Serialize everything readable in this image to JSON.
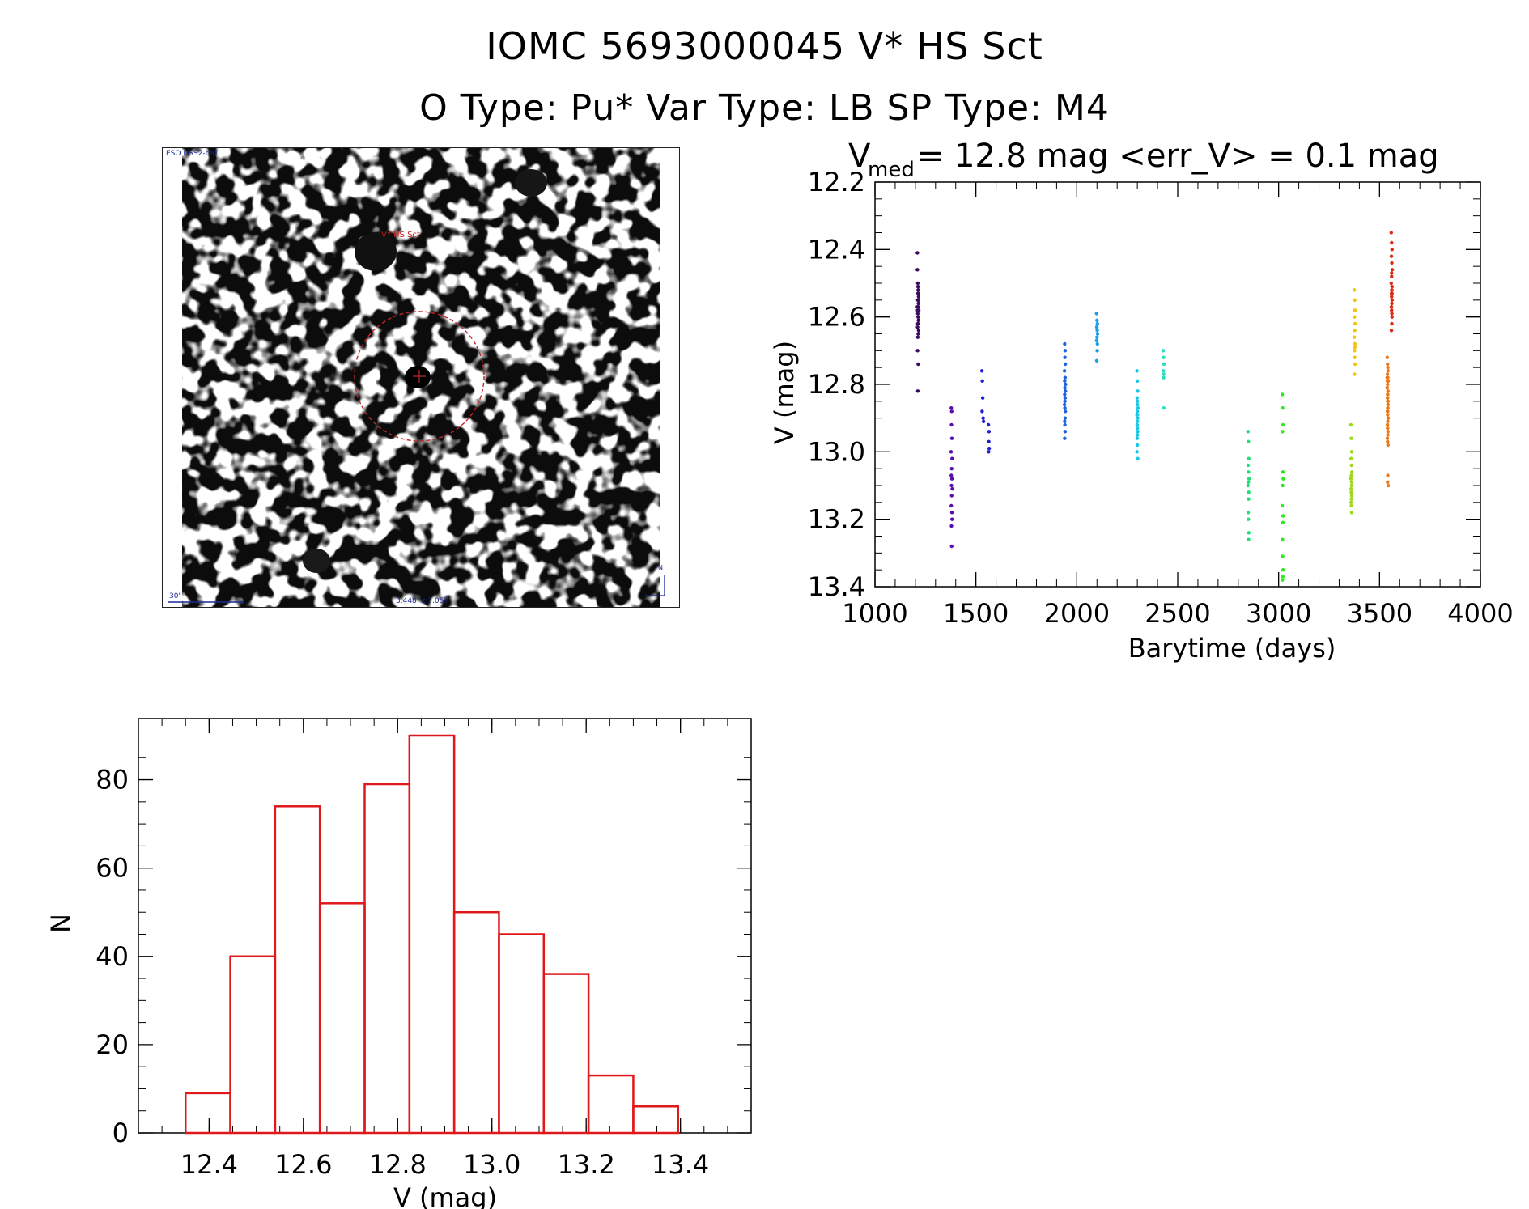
{
  "header": {
    "title_line1": "IOMC 5693000045   V* HS Sct",
    "title_line2": "O Type: Pu*  Var Type: LB  SP Type: M4"
  },
  "finder_chart": {
    "survey_label": "ESO DSS2-red",
    "target_label": "V* HS Sct",
    "scale_label": "30\"",
    "size_label": "3.448' x 3.057'",
    "north_label": "N"
  },
  "colors": {
    "histogram": "#e0181b",
    "axis": "#000000"
  },
  "chart_data": [
    {
      "type": "scatter",
      "title_prefix": "V",
      "title_subscript": "med",
      "title_rest": " = 12.8 mag <err_V> = 0.1 mag",
      "xlabel": "Barytime (days)",
      "ylabel": "V (mag)",
      "xlim": [
        1000,
        4000
      ],
      "ylim": [
        13.4,
        12.2
      ],
      "y_inverted": true,
      "xticks": [
        1000,
        1500,
        2000,
        2500,
        3000,
        3500,
        4000
      ],
      "xtick_labels": [
        "1000",
        "1500",
        "2000",
        "2500",
        "3000",
        "3500",
        "4000"
      ],
      "yticks": [
        12.2,
        12.4,
        12.6,
        12.8,
        13.0,
        13.2,
        13.4
      ],
      "ytick_labels": [
        "12.2",
        "12.4",
        "12.6",
        "12.8",
        "13.0",
        "13.2",
        "13.4"
      ],
      "series": [
        {
          "name": "s1200",
          "color": "#3b0a5c",
          "x": [
            1210,
            1210,
            1212,
            1214,
            1214,
            1216,
            1212,
            1215,
            1213,
            1211,
            1217,
            1212,
            1214,
            1215,
            1213,
            1211,
            1216,
            1214,
            1212,
            1210,
            1213,
            1215,
            1214,
            1212,
            1216,
            1213,
            1211,
            1214,
            1212
          ],
          "y": [
            12.41,
            12.46,
            12.5,
            12.52,
            12.53,
            12.54,
            12.55,
            12.56,
            12.57,
            12.58,
            12.58,
            12.59,
            12.6,
            12.61,
            12.62,
            12.63,
            12.64,
            12.65,
            12.66,
            12.57,
            12.51,
            12.55,
            12.6,
            12.62,
            12.56,
            12.53,
            12.7,
            12.74,
            12.82
          ]
        },
        {
          "name": "s1380",
          "color": "#5a0ea8",
          "x": [
            1378,
            1380,
            1379,
            1381,
            1377,
            1382,
            1380,
            1378,
            1381,
            1379,
            1383,
            1380,
            1378,
            1381,
            1382,
            1379,
            1380
          ],
          "y": [
            12.87,
            12.88,
            12.92,
            12.96,
            13.0,
            13.02,
            13.05,
            13.07,
            13.08,
            13.1,
            13.11,
            13.13,
            13.16,
            13.18,
            13.2,
            13.22,
            13.28
          ]
        },
        {
          "name": "s1540",
          "color": "#2020d0",
          "x": [
            1530,
            1532,
            1534,
            1531,
            1536,
            1538,
            1562,
            1565,
            1564,
            1566,
            1563
          ],
          "y": [
            12.76,
            12.79,
            12.84,
            12.88,
            12.9,
            12.91,
            12.92,
            12.94,
            12.97,
            12.99,
            13.0
          ]
        },
        {
          "name": "s1940",
          "color": "#1e64e0",
          "x": [
            1940,
            1942,
            1941,
            1943,
            1939,
            1942,
            1940,
            1944,
            1941,
            1943,
            1940,
            1942,
            1941,
            1939,
            1943,
            1942,
            1940,
            1941,
            1942,
            1940,
            1943,
            1941
          ],
          "y": [
            12.68,
            12.7,
            12.72,
            12.74,
            12.76,
            12.78,
            12.79,
            12.8,
            12.81,
            12.82,
            12.83,
            12.84,
            12.85,
            12.86,
            12.88,
            12.9,
            12.91,
            12.92,
            12.94,
            12.96,
            12.82,
            12.87
          ]
        },
        {
          "name": "s2100",
          "color": "#14a0ea",
          "x": [
            2098,
            2100,
            2102,
            2099,
            2101,
            2103,
            2100,
            2098,
            2102,
            2101,
            2099
          ],
          "y": [
            12.59,
            12.61,
            12.62,
            12.63,
            12.64,
            12.65,
            12.66,
            12.67,
            12.68,
            12.7,
            12.73
          ]
        },
        {
          "name": "s2300",
          "color": "#18c8e4",
          "x": [
            2298,
            2300,
            2302,
            2299,
            2301,
            2303,
            2300,
            2298,
            2302,
            2301,
            2299,
            2300,
            2302,
            2301,
            2299,
            2300,
            2298,
            2302,
            2300,
            2301
          ],
          "y": [
            12.76,
            12.79,
            12.82,
            12.84,
            12.86,
            12.87,
            12.88,
            12.89,
            12.9,
            12.91,
            12.92,
            12.93,
            12.94,
            12.95,
            12.96,
            12.98,
            13.0,
            13.02,
            12.85,
            12.89
          ]
        },
        {
          "name": "s2430",
          "color": "#26e0c2",
          "x": [
            2428,
            2430,
            2432,
            2429,
            2431,
            2430,
            2431
          ],
          "y": [
            12.7,
            12.72,
            12.74,
            12.76,
            12.77,
            12.78,
            12.87
          ]
        },
        {
          "name": "s2850",
          "color": "#20e07a",
          "x": [
            2848,
            2850,
            2852,
            2849,
            2851,
            2853,
            2850,
            2848,
            2852,
            2851,
            2849,
            2850,
            2852,
            2851
          ],
          "y": [
            12.94,
            12.97,
            13.02,
            13.04,
            13.06,
            13.08,
            13.09,
            13.1,
            13.12,
            13.14,
            13.18,
            13.2,
            13.24,
            13.26
          ]
        },
        {
          "name": "s3020",
          "color": "#30e820",
          "x": [
            3018,
            3020,
            3022,
            3019,
            3021,
            3023,
            3020,
            3018,
            3022,
            3021,
            3019,
            3020,
            3022,
            3021,
            3019
          ],
          "y": [
            12.83,
            12.87,
            12.92,
            12.94,
            13.06,
            13.08,
            13.1,
            13.16,
            13.19,
            13.21,
            13.26,
            13.31,
            13.35,
            13.37,
            13.38
          ]
        },
        {
          "name": "s3360",
          "color": "#a0d81a",
          "x": [
            3358,
            3360,
            3362,
            3359,
            3361,
            3363,
            3360,
            3358,
            3362,
            3361,
            3359,
            3360,
            3362,
            3361,
            3359,
            3360,
            3362
          ],
          "y": [
            12.92,
            12.96,
            13.0,
            13.02,
            13.04,
            13.06,
            13.07,
            13.08,
            13.09,
            13.1,
            13.11,
            13.12,
            13.13,
            13.14,
            13.15,
            13.16,
            13.18
          ]
        },
        {
          "name": "s3380",
          "color": "#f0c410",
          "x": [
            3375,
            3377,
            3378,
            3376,
            3379,
            3377,
            3375,
            3378,
            3376,
            3377,
            3379,
            3376,
            3378
          ],
          "y": [
            12.52,
            12.55,
            12.58,
            12.6,
            12.62,
            12.64,
            12.66,
            12.68,
            12.7,
            12.72,
            12.74,
            12.77,
            12.69
          ]
        },
        {
          "name": "s3540",
          "color": "#f07814",
          "x": [
            3538,
            3540,
            3542,
            3539,
            3541,
            3543,
            3540,
            3538,
            3542,
            3541,
            3539,
            3540,
            3542,
            3541,
            3539,
            3540,
            3542,
            3541,
            3539,
            3540,
            3542,
            3541,
            3539,
            3540,
            3542,
            3541,
            3539,
            3540,
            3542,
            3541,
            3543,
            3538,
            3540,
            3542,
            3541,
            3539,
            3538,
            3541,
            3540,
            3543
          ],
          "y": [
            12.72,
            12.74,
            12.76,
            12.77,
            12.78,
            12.79,
            12.8,
            12.81,
            12.82,
            12.83,
            12.84,
            12.85,
            12.86,
            12.87,
            12.88,
            12.89,
            12.9,
            12.91,
            12.92,
            12.93,
            12.94,
            12.95,
            12.96,
            12.97,
            12.98,
            12.75,
            12.79,
            12.83,
            12.85,
            12.87,
            12.9,
            12.81,
            12.84,
            12.86,
            12.88,
            12.92,
            12.78,
            13.07,
            13.09,
            13.1
          ]
        },
        {
          "name": "s3560",
          "color": "#e02a12",
          "x": [
            3558,
            3560,
            3562,
            3559,
            3561,
            3563,
            3560,
            3558,
            3562,
            3561,
            3559,
            3560,
            3562,
            3561,
            3559,
            3560,
            3562,
            3561,
            3559,
            3560,
            3562,
            3561
          ],
          "y": [
            12.35,
            12.38,
            12.4,
            12.42,
            12.44,
            12.46,
            12.48,
            12.5,
            12.51,
            12.52,
            12.53,
            12.54,
            12.55,
            12.56,
            12.57,
            12.58,
            12.6,
            12.62,
            12.64,
            12.47,
            12.53,
            12.59
          ]
        }
      ]
    },
    {
      "type": "bar",
      "style": "histogram",
      "xlabel": "V (mag)",
      "ylabel": "N",
      "xlim": [
        12.25,
        13.55
      ],
      "ylim": [
        0,
        90
      ],
      "bin_edges": [
        12.35,
        12.445,
        12.54,
        12.635,
        12.73,
        12.825,
        12.92,
        13.015,
        13.11,
        13.205,
        13.3,
        13.395
      ],
      "values": [
        9,
        40,
        74,
        52,
        79,
        90,
        50,
        45,
        36,
        13,
        6
      ],
      "xticks": [
        12.4,
        12.6,
        12.8,
        13.0,
        13.2,
        13.4
      ],
      "xtick_labels": [
        "12.4",
        "12.6",
        "12.8",
        "13.0",
        "13.2",
        "13.4"
      ],
      "yticks": [
        0,
        20,
        40,
        60,
        80
      ],
      "ytick_labels": [
        "0",
        "20",
        "40",
        "60",
        "80"
      ]
    }
  ]
}
